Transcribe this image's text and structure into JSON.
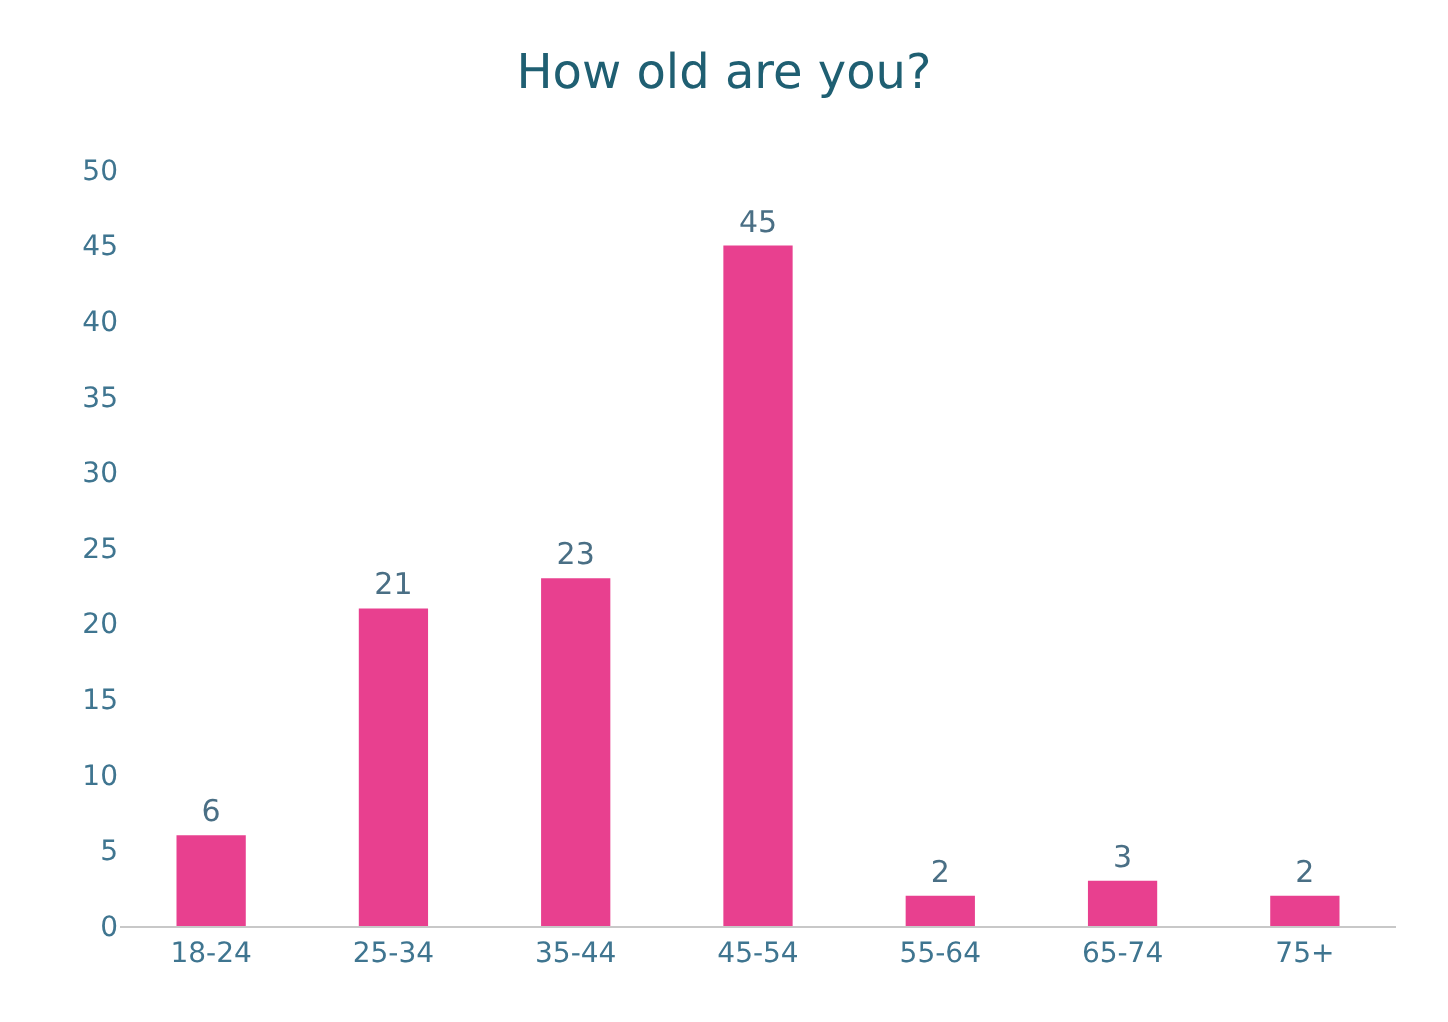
{
  "chart_data": {
    "type": "bar",
    "title": "How old are you?",
    "categories": [
      "18-24",
      "25-34",
      "35-44",
      "45-54",
      "55-64",
      "65-74",
      "75+"
    ],
    "values": [
      6,
      21,
      23,
      45,
      2,
      3,
      2
    ],
    "color": "#e8408f",
    "ylim": [
      0,
      50
    ],
    "yticks": [
      0,
      5,
      10,
      15,
      20,
      25,
      30,
      35,
      40,
      45,
      50
    ],
    "grid": false,
    "data_labels": true
  }
}
